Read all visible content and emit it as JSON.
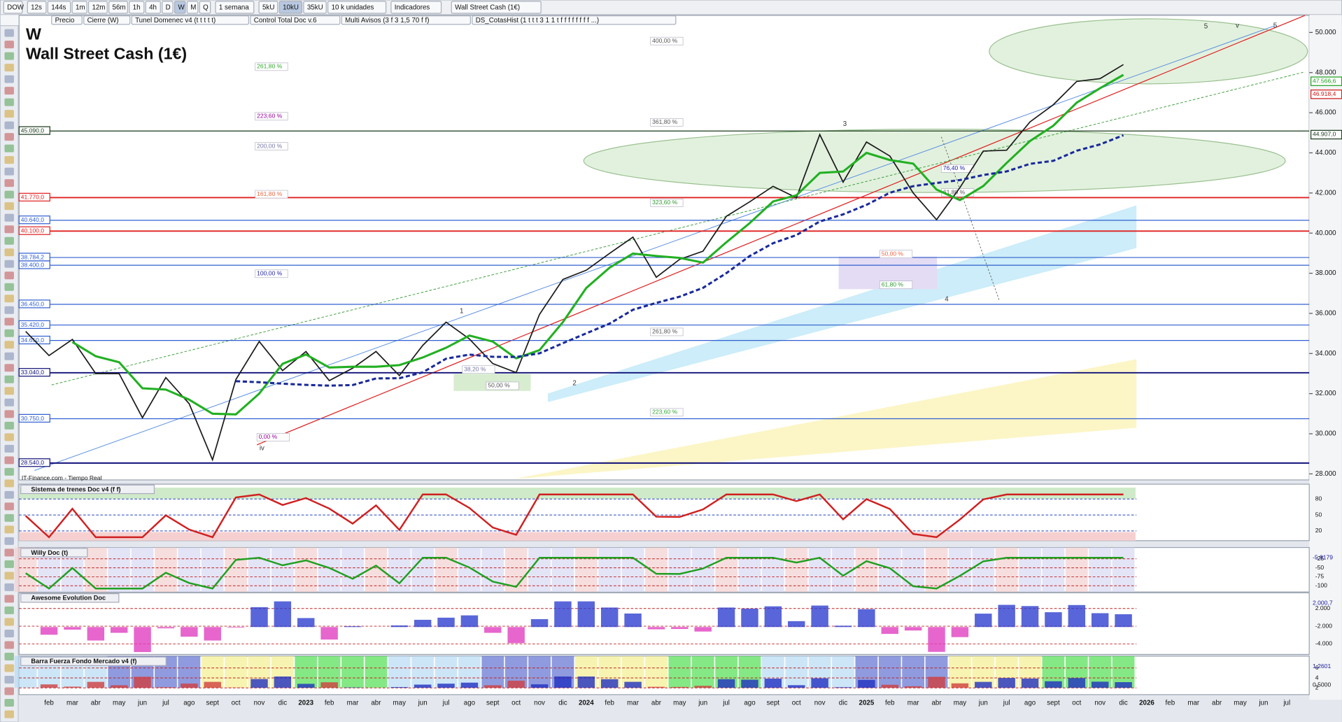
{
  "toolbar": {
    "symbol": "DOW",
    "timeframes": [
      "12s",
      "144s",
      "1m",
      "12m",
      "56m",
      "1h",
      "4h",
      "D",
      "W",
      "M",
      "Q"
    ],
    "period": "1 semana",
    "units": [
      "5kU",
      "10kU",
      "35kU"
    ],
    "units_menu": "10 k unidades",
    "indicators": "Indicadores",
    "instrument": "Wall Street Cash (1€)"
  },
  "indicator_bar": [
    "Precio",
    "Cierre (W)",
    "Tunel Domenec v4 (t t t t t)",
    "Control Total Doc v.6",
    "Multi Avisos (3 f 3 1,5 70 f f)",
    "DS_CotasHist (1 t t t 3 1 1 t f f f f f f f f ...)"
  ],
  "chart_data": {
    "type": "line",
    "symbol_title": "W",
    "title": "Wall Street Cash (1€)",
    "source": "IT-Finance.com - Tiempo Real",
    "color": "#1a1a1a",
    "categories": [
      null,
      "feb",
      "mar",
      "abr",
      "may",
      "jun",
      "jul",
      "ago",
      "sept",
      "oct",
      "nov",
      "dic",
      "2023",
      "feb",
      "mar",
      "abr",
      "may",
      "jun",
      "jul",
      "ago",
      "sept",
      "oct",
      "nov",
      "dic",
      "2024",
      "feb",
      "mar",
      "abr",
      "may",
      "jun",
      "jul",
      "ago",
      "sept",
      "oct",
      "nov",
      "dic",
      "2025",
      "feb",
      "mar",
      "abr",
      "may",
      "jun",
      "jul",
      "ago",
      "sept",
      "oct",
      "nov",
      "dic",
      "2026",
      "feb",
      "mar",
      "abr",
      "may",
      "jun",
      "jul"
    ],
    "values": [
      35100,
      33900,
      34700,
      33000,
      33000,
      30800,
      32800,
      31500,
      28700,
      32700,
      34600,
      33150,
      34100,
      32650,
      33270,
      34100,
      32900,
      34400,
      35560,
      34720,
      33500,
      33050,
      35950,
      37690,
      38150,
      38990,
      39800,
      37800,
      38690,
      39100,
      40840,
      41560,
      42330,
      41760,
      44910,
      42540,
      44540,
      43840,
      42000,
      40670,
      42270,
      44090,
      44130,
      45540,
      46400,
      47560,
      47700,
      48400,
      null,
      null,
      null,
      null,
      null,
      null,
      null
    ],
    "ylim": [
      27700,
      50850
    ],
    "yticks": [
      {
        "value": 28000,
        "label": "28.000"
      },
      {
        "value": 30000,
        "label": "30.000"
      },
      {
        "value": 32000,
        "label": "32.000"
      },
      {
        "value": 34000,
        "label": "34.000"
      },
      {
        "value": 36000,
        "label": "36.000"
      },
      {
        "value": 38000,
        "label": "38.000"
      },
      {
        "value": 40000,
        "label": "40.000"
      },
      {
        "value": 42000,
        "label": "42.000"
      },
      {
        "value": 44000,
        "label": "44.000"
      },
      {
        "value": 46000,
        "label": "46.000"
      },
      {
        "value": 48000,
        "label": "48.000"
      },
      {
        "value": 50000,
        "label": "50.000"
      }
    ],
    "levels": [
      {
        "value": 45090,
        "label": "45.090,0",
        "color": "#1a3a1a"
      },
      {
        "value": 41770,
        "label": "41.770,0",
        "color": "#e02020"
      },
      {
        "value": 40640,
        "label": "40.640,0",
        "color": "#3060d0"
      },
      {
        "value": 40100,
        "label": "40.100,0",
        "color": "#e02020"
      },
      {
        "value": 38784.2,
        "label": "38.784,2",
        "color": "#3060d0"
      },
      {
        "value": 38400,
        "label": "38.400,0",
        "color": "#3060d0"
      },
      {
        "value": 36450,
        "label": "36.450,0",
        "color": "#3060d0"
      },
      {
        "value": 35420,
        "label": "35.420,0",
        "color": "#3060d0"
      },
      {
        "value": 34650,
        "label": "34.650,0",
        "color": "#3060d0"
      },
      {
        "value": 33040,
        "label": "33.040,0",
        "color": "#10107a"
      },
      {
        "value": 30750,
        "label": "30.750,0",
        "color": "#3060d0"
      },
      {
        "value": 28540,
        "label": "28.540,0",
        "color": "#10107a"
      }
    ],
    "price_labels": [
      {
        "value": 47566.6,
        "label": "47.566,6",
        "color": "#1e9e1e"
      },
      {
        "value": 46918.4,
        "label": "46.918,4",
        "color": "#d01818"
      },
      {
        "value": 44907,
        "label": "44.907,0",
        "color": "#1a3a1a"
      }
    ],
    "fib_labels": [
      "400,00 %",
      "261,80 %",
      "223,60 %",
      "361,80 %",
      "200,00 %",
      "161,80 %",
      "323,60 %",
      "100,00 %",
      "261,80 %",
      "223,60 %",
      "0,00 %",
      "50,00 %",
      "38,20 %",
      "50,00 %",
      "61,80 %",
      "76,40 %",
      "61,80 %"
    ],
    "wave_labels": [
      "1",
      "2",
      "3",
      "4",
      "5",
      "iv",
      "v",
      "5"
    ]
  },
  "panels": [
    {
      "name": "Sistema de trenes Doc v4 (f f)",
      "ticks": [
        "80",
        "50",
        "20"
      ]
    },
    {
      "name": "Willy Doc (t)",
      "ticks": [
        "-25",
        "-50",
        "-75",
        "-100"
      ],
      "value_label": "-5,9179"
    },
    {
      "name": "Awesome Evolution Doc",
      "ticks": [
        "2.000",
        "-2.000",
        "-4.000"
      ],
      "value_label": "2.000,7"
    },
    {
      "name": "Barra Fuerza Fondo Mercado v4 (f)",
      "ticks": [
        "6",
        "4",
        "2"
      ],
      "value_label": "1,2601",
      "value_label2": "0,5000"
    }
  ]
}
